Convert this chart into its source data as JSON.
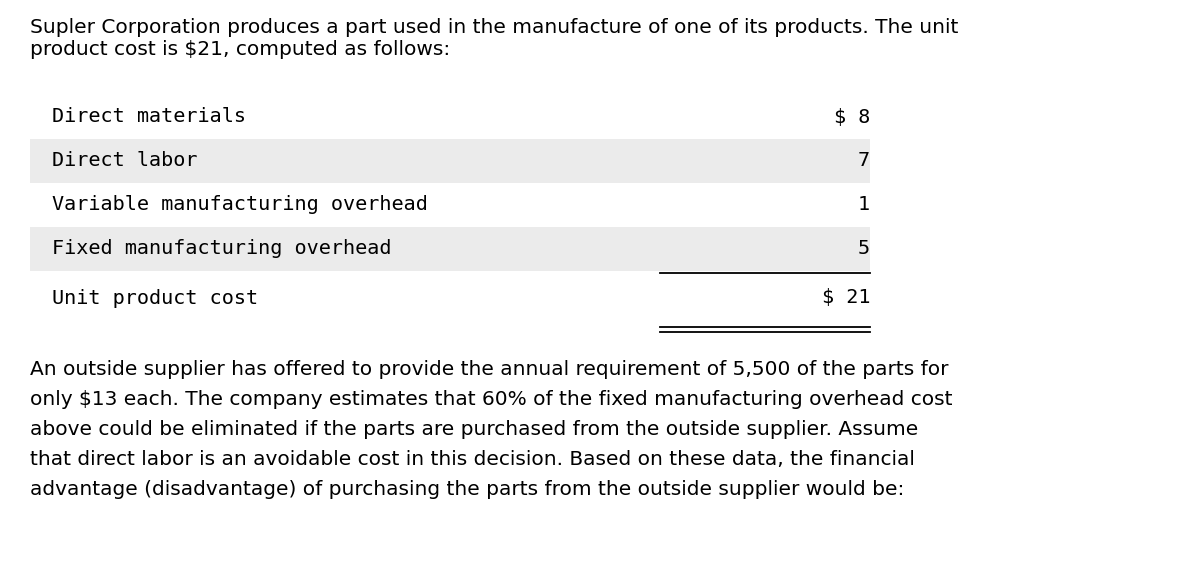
{
  "background_color": "#ffffff",
  "intro_text_line1": "Supler Corporation produces a part used in the manufacture of one of its products. The unit",
  "intro_text_line2": "product cost is $21, computed as follows:",
  "table_rows": [
    {
      "label": "Direct materials",
      "value": "$ 8",
      "shaded": false
    },
    {
      "label": "Direct labor",
      "value": "7",
      "shaded": true
    },
    {
      "label": "Variable manufacturing overhead",
      "value": "1",
      "shaded": false
    },
    {
      "label": "Fixed manufacturing overhead",
      "value": "5",
      "shaded": true
    }
  ],
  "total_row": {
    "label": "Unit product cost",
    "value": "$ 21"
  },
  "body_lines": [
    "An outside supplier has offered to provide the annual requirement of 5,500 of the parts for",
    "only $13 each. The company estimates that 60% of the fixed manufacturing overhead cost",
    "above could be eliminated if the parts are purchased from the outside supplier. Assume",
    "that direct labor is an avoidable cost in this decision. Based on these data, the financial",
    "advantage (disadvantage) of purchasing the parts from the outside supplier would be:"
  ],
  "mono_font": "DejaVu Sans Mono",
  "sans_font": "DejaVu Sans",
  "intro_fontsize": 14.5,
  "table_fontsize": 14.5,
  "body_fontsize": 14.5,
  "text_color": "#000000",
  "shade_color": "#ebebeb",
  "fig_width": 12.0,
  "fig_height": 5.86,
  "dpi": 100
}
